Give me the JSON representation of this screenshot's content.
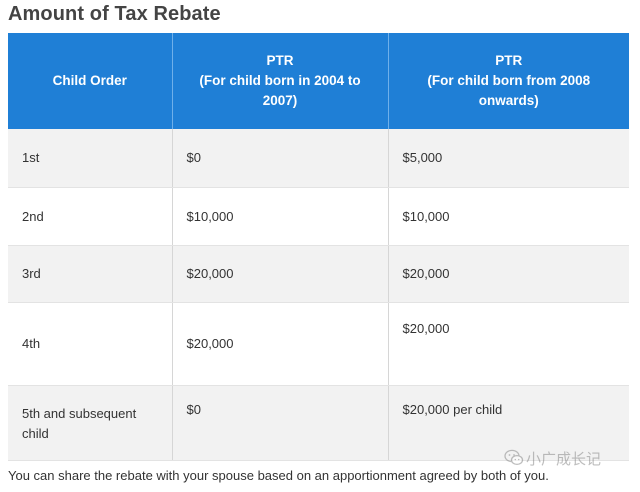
{
  "page": {
    "title": "Amount of Tax Rebate",
    "footnote": "You can share the rebate with your spouse based on an apportionment agreed by both of you."
  },
  "table": {
    "headers": {
      "child_order": "Child Order",
      "ptr_2004": {
        "line1": "PTR",
        "line2": "(For child born in 2004 to",
        "line3": "2007)"
      },
      "ptr_2008": {
        "line1": "PTR",
        "line2": "(For child born from 2008",
        "line3": "onwards)"
      }
    },
    "rows": [
      {
        "order": "1st",
        "ptr_2004": "$0",
        "ptr_2008": "$5,000"
      },
      {
        "order": "2nd",
        "ptr_2004": "$10,000",
        "ptr_2008": "$10,000"
      },
      {
        "order": "3rd",
        "ptr_2004": "$20,000",
        "ptr_2008": "$20,000"
      },
      {
        "order": "4th",
        "ptr_2004": "$20,000",
        "ptr_2008": "$20,000"
      },
      {
        "order_line1": "5th and subsequent",
        "order_line2": "child",
        "ptr_2004": "$0",
        "ptr_2008": "$20,000 per child"
      }
    ]
  },
  "watermark": {
    "text": "小广成长记",
    "icon": "wechat-logo-icon"
  },
  "colors": {
    "header_bg": "#1f7fd6",
    "header_text": "#ffffff",
    "row_alt_bg": "#f2f2f2",
    "title_text": "#444444"
  }
}
